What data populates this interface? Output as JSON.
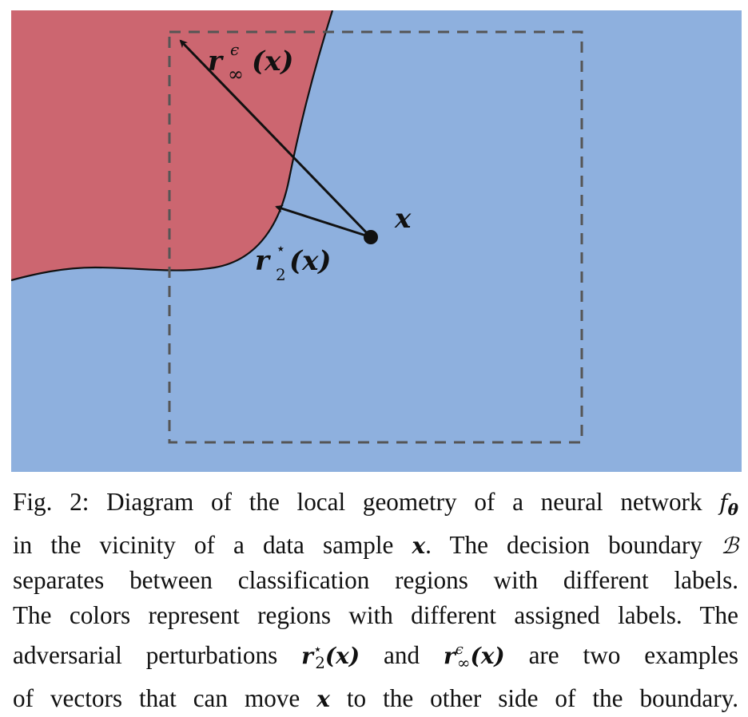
{
  "diagram": {
    "colors": {
      "region_a": "#cc6670",
      "region_b": "#8eb0de",
      "boundary": "#111111",
      "box": "#555555",
      "arrow": "#111111"
    },
    "labels": {
      "point": "x",
      "r_inf": "r",
      "r_inf_sup": "ϵ",
      "r_inf_sub": "∞",
      "r_2": "r",
      "r_2_sup": "⋆",
      "r_2_sub": "2",
      "arg": "(x)"
    }
  },
  "caption": {
    "line1_pre": "Fig. 2: Diagram of the local geometry of a neural network ",
    "f_sym": "f",
    "f_sub": "θ",
    "line2_pre": "in the vicinity of a data sample ",
    "x_sym": "x",
    "line2_mid": ". The decision boundary ",
    "B_sym": "ℬ",
    "line3": "separates between classification regions with different labels.",
    "line4": "The colors represent regions with different assigned labels. The",
    "line5_pre": "adversarial perturbations ",
    "r_sym": "r",
    "r2_sup": "⋆",
    "r2_sub": "2",
    "arg": "(x)",
    "line5_mid": " and ",
    "rinf_sup": "ϵ",
    "rinf_sub": "∞",
    "line5_post": " are two examples",
    "line6_pre": "of vectors that can move ",
    "line6_post": " to the other side of the boundary."
  }
}
